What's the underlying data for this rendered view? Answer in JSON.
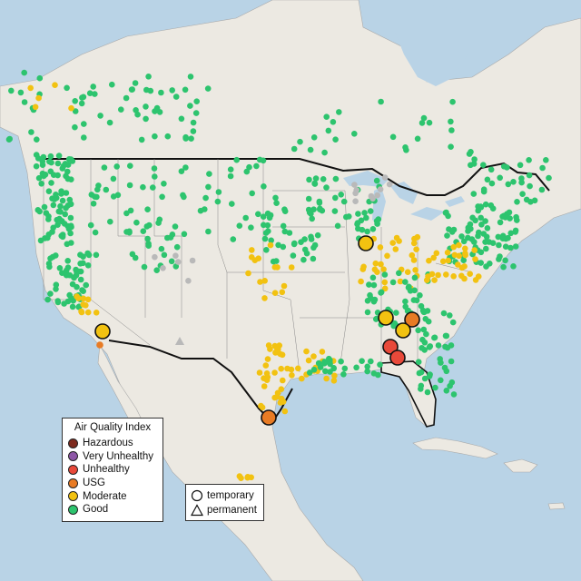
{
  "map": {
    "layers": {
      "stations": {
        "colors": {
          "hazardous": "#7e2a1e",
          "very_unhealthy": "#8e57a7",
          "unhealthy": "#e8493a",
          "usg": "#e87b24",
          "moderate": "#f2c211",
          "good": "#2dc46e",
          "no_data": "#b9b9b9"
        }
      }
    }
  },
  "legend": {
    "title": "Air Quality Index",
    "items": [
      {
        "label": "Hazardous",
        "color": "#7e2a1e"
      },
      {
        "label": "Very Unhealthy",
        "color": "#8e57a7"
      },
      {
        "label": "Unhealthy",
        "color": "#e8493a"
      },
      {
        "label": "USG",
        "color": "#e87b24"
      },
      {
        "label": "Moderate",
        "color": "#f2c211"
      },
      {
        "label": "Good",
        "color": "#2dc46e"
      }
    ]
  },
  "shape_legend": {
    "items": [
      {
        "label": "temporary",
        "shape": "circle"
      },
      {
        "label": "permanent",
        "shape": "triangle"
      }
    ]
  }
}
